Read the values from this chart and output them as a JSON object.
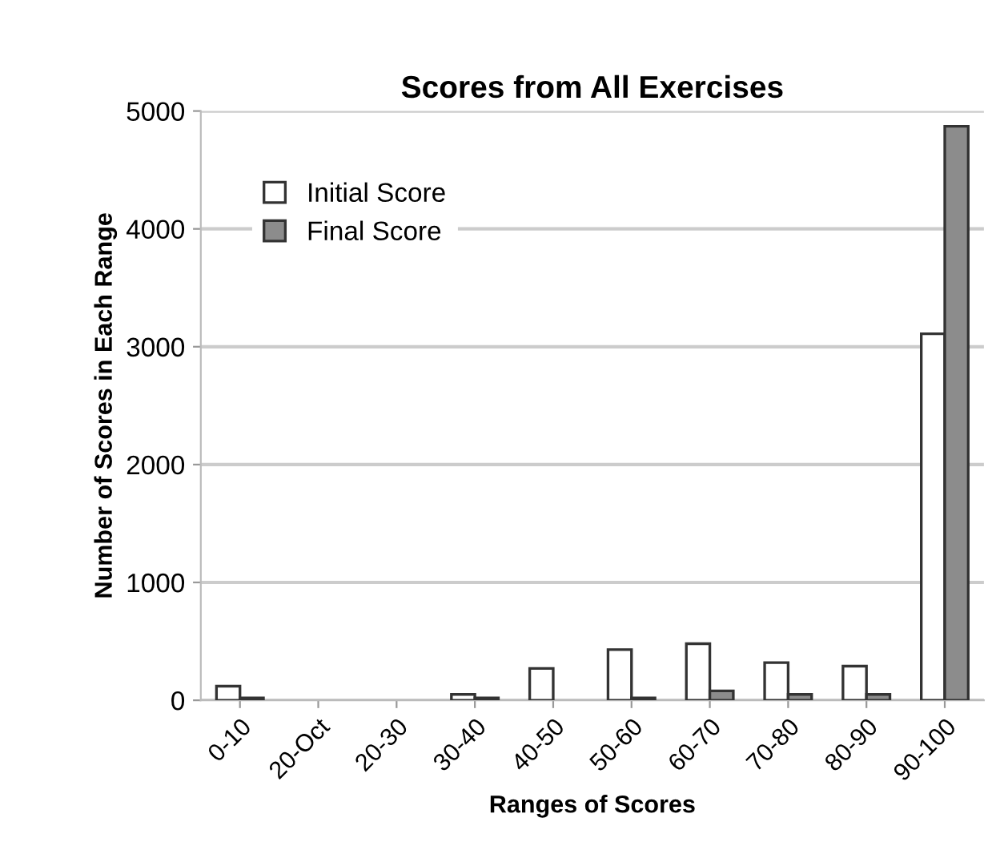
{
  "chart_data": {
    "type": "bar",
    "title": "Scores from All Exercises",
    "xlabel": "Ranges of Scores",
    "ylabel": "Number of Scores in Each Range",
    "categories": [
      "0-10",
      "20-Oct",
      "20-30",
      "30-40",
      "40-50",
      "50-60",
      "60-70",
      "70-80",
      "80-90",
      "90-100"
    ],
    "series": [
      {
        "name": "Initial Score",
        "color": "#ffffff",
        "values": [
          120,
          0,
          0,
          50,
          270,
          430,
          480,
          320,
          290,
          3110
        ]
      },
      {
        "name": "Final Score",
        "color": "#8c8c8c",
        "values": [
          20,
          0,
          0,
          20,
          0,
          20,
          80,
          50,
          50,
          4870
        ]
      }
    ],
    "ylim": [
      0,
      5000
    ],
    "yticks": [
      0,
      1000,
      2000,
      3000,
      4000,
      5000
    ],
    "grid": "y",
    "legend": "top left"
  }
}
